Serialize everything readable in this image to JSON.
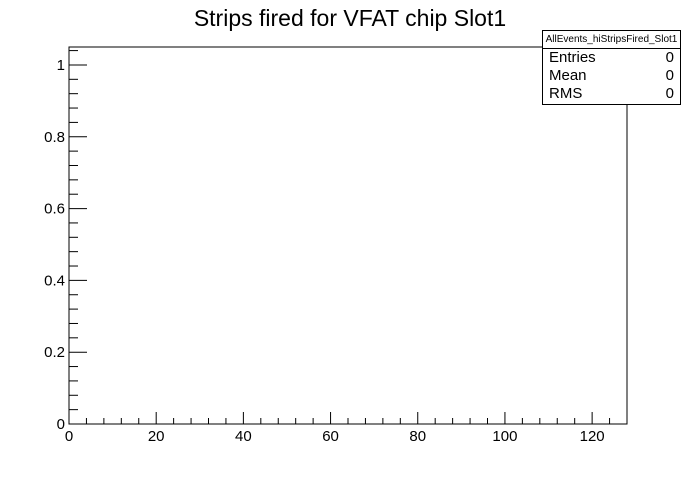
{
  "chart_data": {
    "type": "bar",
    "title": "Strips fired for VFAT chip Slot1",
    "xlabel": "",
    "ylabel": "",
    "xlim": [
      0,
      128
    ],
    "ylim": [
      0,
      1.05
    ],
    "x_ticks": [
      "0",
      "20",
      "40",
      "60",
      "80",
      "100",
      "120"
    ],
    "y_ticks": [
      "0",
      "0.2",
      "0.4",
      "0.6",
      "0.8",
      "1"
    ],
    "grid": false,
    "series": [],
    "stats": {
      "name": "AllEvents_hiStripsFired_Slot1",
      "rows": [
        {
          "label": "Entries",
          "value": "0"
        },
        {
          "label": "Mean",
          "value": "0"
        },
        {
          "label": "RMS",
          "value": "0"
        }
      ]
    },
    "colors": {
      "axis": "#000000",
      "background": "#ffffff"
    }
  }
}
